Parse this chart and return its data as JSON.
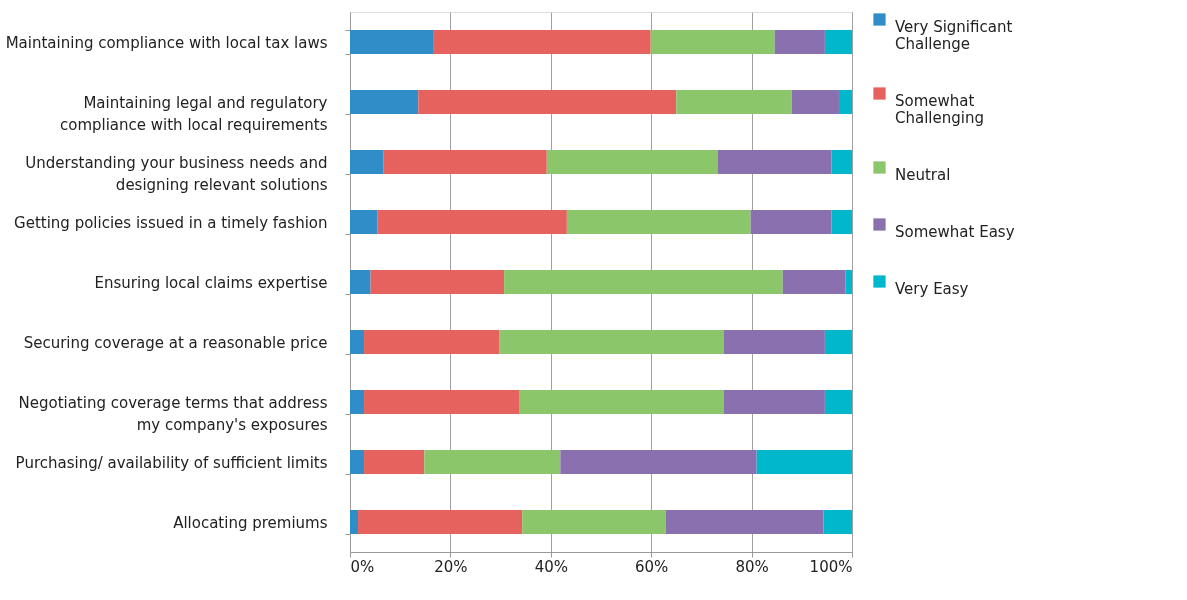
{
  "chart_data": {
    "type": "bar",
    "orientation": "horizontal",
    "stacked": true,
    "categories": [
      "Maintaining compliance with local tax laws",
      "Maintaining legal and regulatory\ncompliance with local requirements",
      "Understanding your business needs and\ndesigning relevant solutions",
      "Getting policies issued in a timely fashion",
      "Ensuring local claims expertise",
      "Securing coverage at a reasonable price",
      "Negotiating coverage terms that address\nmy company's exposures",
      "Purchasing/ availability of sufficient limits",
      "Allocating premiums"
    ],
    "series": [
      {
        "name": "Very Significant\nChallenge",
        "color": "#318dc8",
        "values": [
          16.7,
          13.6,
          6.7,
          5.5,
          4.1,
          2.8,
          2.8,
          2.8,
          1.6
        ]
      },
      {
        "name": "Somewhat\nChallenging",
        "color": "#e6625e",
        "values": [
          43.2,
          51.4,
          32.5,
          37.7,
          26.6,
          26.9,
          31.0,
          12.0,
          32.7
        ]
      },
      {
        "name": "Neutral",
        "color": "#8cc66b",
        "values": [
          24.7,
          23.0,
          34.0,
          36.6,
          55.5,
          44.8,
          40.7,
          27.1,
          28.6
        ]
      },
      {
        "name": "Somewhat Easy",
        "color": "#8b70b0",
        "values": [
          10.0,
          9.4,
          22.7,
          16.1,
          12.5,
          20.1,
          20.1,
          39.1,
          31.4
        ]
      },
      {
        "name": "Very Easy",
        "color": "#00b7cc",
        "values": [
          5.4,
          2.6,
          4.1,
          4.1,
          1.3,
          5.4,
          5.4,
          19.0,
          5.7
        ]
      }
    ],
    "xlim": [
      0,
      100
    ],
    "xticks": [
      {
        "value": 0,
        "label": "0%"
      },
      {
        "value": 20,
        "label": "20%"
      },
      {
        "value": 40,
        "label": "40%"
      },
      {
        "value": 60,
        "label": "60%"
      },
      {
        "value": 80,
        "label": "80%"
      },
      {
        "value": 100,
        "label": "100%"
      }
    ],
    "grid": "x",
    "legend": "right"
  }
}
